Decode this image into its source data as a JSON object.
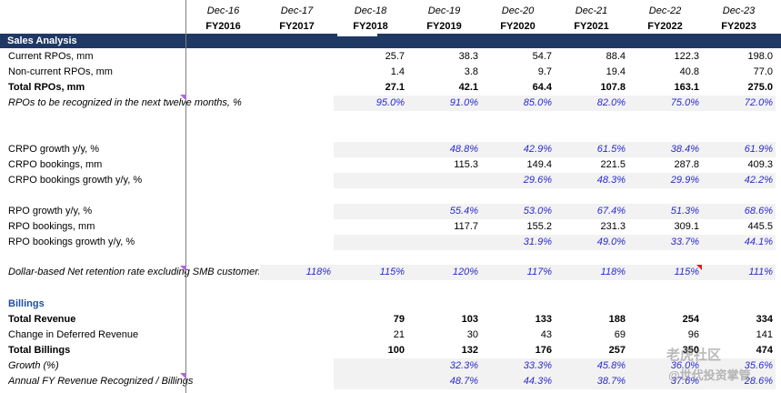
{
  "header": {
    "dates": [
      "Dec-16",
      "Dec-17",
      "Dec-18",
      "Dec-19",
      "Dec-20",
      "Dec-21",
      "Dec-22",
      "Dec-23"
    ],
    "fiscal_years": [
      "FY2016",
      "FY2017",
      "FY2018",
      "FY2019",
      "FY2020",
      "FY2021",
      "FY2022",
      "FY2023"
    ]
  },
  "section": {
    "title": "Sales Analysis"
  },
  "rows": [
    {
      "label": "Current RPOs, mm",
      "values": [
        "",
        "",
        "25.7",
        "38.3",
        "54.7",
        "88.4",
        "122.3",
        "198.0"
      ],
      "style": ""
    },
    {
      "label": "Non-current RPOs, mm",
      "values": [
        "",
        "",
        "1.4",
        "3.8",
        "9.7",
        "19.4",
        "40.8",
        "77.0"
      ],
      "style": ""
    },
    {
      "label": "Total RPOs, mm",
      "values": [
        "",
        "",
        "27.1",
        "42.1",
        "64.4",
        "107.8",
        "163.1",
        "275.0"
      ],
      "style": "bold"
    },
    {
      "label": "RPOs to be recognized in the next twelve months, %",
      "values": [
        "",
        "",
        "95.0%",
        "91.0%",
        "85.0%",
        "82.0%",
        "75.0%",
        "72.0%"
      ],
      "style": "pct"
    },
    {
      "label": "CRPO growth y/y, %",
      "values": [
        "",
        "",
        "",
        "48.8%",
        "42.9%",
        "61.5%",
        "38.4%",
        "61.9%"
      ],
      "style": "pct-plain"
    },
    {
      "label": "CRPO bookings, mm",
      "values": [
        "",
        "",
        "",
        "115.3",
        "149.4",
        "221.5",
        "287.8",
        "409.3"
      ],
      "style": ""
    },
    {
      "label": "CRPO bookings growth y/y, %",
      "values": [
        "",
        "",
        "",
        "",
        "29.6%",
        "48.3%",
        "29.9%",
        "42.2%"
      ],
      "style": "pct-plain"
    },
    {
      "label": "RPO growth y/y, %",
      "values": [
        "",
        "",
        "",
        "55.4%",
        "53.0%",
        "67.4%",
        "51.3%",
        "68.6%"
      ],
      "style": "pct-plain"
    },
    {
      "label": "RPO bookings, mm",
      "values": [
        "",
        "",
        "",
        "117.7",
        "155.2",
        "231.3",
        "309.1",
        "445.5"
      ],
      "style": ""
    },
    {
      "label": "RPO bookings growth y/y, %",
      "values": [
        "",
        "",
        "",
        "",
        "31.9%",
        "49.0%",
        "33.7%",
        "44.1%"
      ],
      "style": "pct-plain"
    },
    {
      "label": "Dollar-based Net retention rate excluding SMB customers",
      "values": [
        "",
        "118%",
        "115%",
        "120%",
        "117%",
        "118%",
        "115%",
        "111%"
      ],
      "style": "pct"
    },
    {
      "label": "Billings",
      "values": [
        "",
        "",
        "",
        "",
        "",
        "",
        "",
        ""
      ],
      "style": "billings"
    },
    {
      "label": "Total Revenue",
      "values": [
        "",
        "",
        "79",
        "103",
        "133",
        "188",
        "254",
        "334"
      ],
      "style": "bold"
    },
    {
      "label": "Change in Deferred Revenue",
      "values": [
        "",
        "",
        "21",
        "30",
        "43",
        "69",
        "96",
        "141"
      ],
      "style": ""
    },
    {
      "label": "Total Billings",
      "values": [
        "",
        "",
        "100",
        "132",
        "176",
        "257",
        "350",
        "474"
      ],
      "style": "bold"
    },
    {
      "label": "Growth (%)",
      "values": [
        "",
        "",
        "",
        "32.3%",
        "33.3%",
        "45.8%",
        "36.0%",
        "35.6%"
      ],
      "style": "pct"
    },
    {
      "label": "Annual FY Revenue Recognized / Billings",
      "values": [
        "",
        "",
        "",
        "48.7%",
        "44.3%",
        "38.7%",
        "37.6%",
        "28.6%"
      ],
      "style": "pct"
    }
  ],
  "watermark": {
    "line1": "老虎社区",
    "line2": "@世代投资掌管"
  }
}
